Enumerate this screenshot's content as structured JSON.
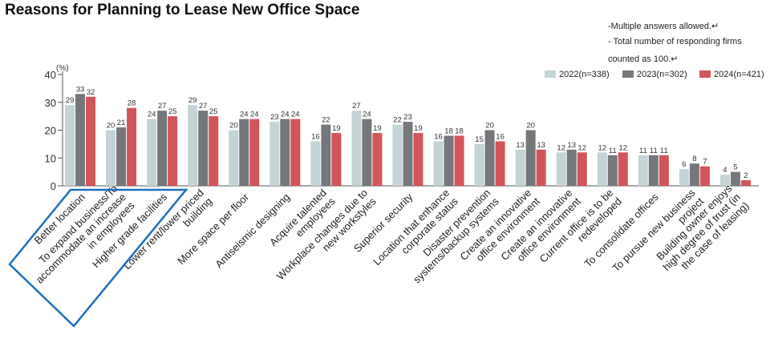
{
  "title": "Reasons for Planning to Lease New Office Space",
  "notes": [
    "-Multiple answers allowed.↵",
    "- Total number of responding firms",
    "counted as 100.↵"
  ],
  "colors": {
    "s2022": "#c3d3d6",
    "s2023": "#76777b",
    "s2024": "#d2555c",
    "axis": "#555555",
    "highlight": "#1f6fbf"
  },
  "chart_data": {
    "type": "bar",
    "title": "Reasons for Planning to Lease New Office Space",
    "ylabel": "(%)",
    "xlabel": "",
    "ylim": [
      0,
      40
    ],
    "yticks": [
      0,
      10,
      20,
      30,
      40
    ],
    "legend_position": "top-right",
    "categories": [
      "Better location",
      "To expand business/To accommodate an increase in employees",
      "Higher grade facilities",
      "Lower rent/lower priced building",
      "More space per floor",
      "Antiseismic designing",
      "Acquire talented employees",
      "Workplace changes due to new workstyles",
      "Superior security",
      "Location that enhance corporate status",
      "Disaster prevention systems/backup systems",
      "Create an innovative office environment",
      "Create an innovative office environment",
      "Current office is to be redeveloped",
      "To consolidate offices",
      "To pursue new business project",
      "Building owner enjoys high degree of trust (in the case of leasing)"
    ],
    "series": [
      {
        "name": "2022(n=338)",
        "values": [
          29,
          20,
          24,
          29,
          20,
          23,
          16,
          27,
          22,
          16,
          15,
          13,
          12,
          12,
          11,
          6,
          4
        ]
      },
      {
        "name": "2023(n=302)",
        "values": [
          33,
          21,
          27,
          27,
          24,
          24,
          22,
          24,
          23,
          18,
          20,
          20,
          13,
          11,
          11,
          8,
          5
        ]
      },
      {
        "name": "2024(n=421)",
        "values": [
          32,
          28,
          25,
          25,
          24,
          24,
          19,
          19,
          19,
          18,
          16,
          13,
          12,
          12,
          11,
          7,
          2
        ]
      }
    ],
    "highlighted_categories": [
      0,
      1
    ]
  }
}
